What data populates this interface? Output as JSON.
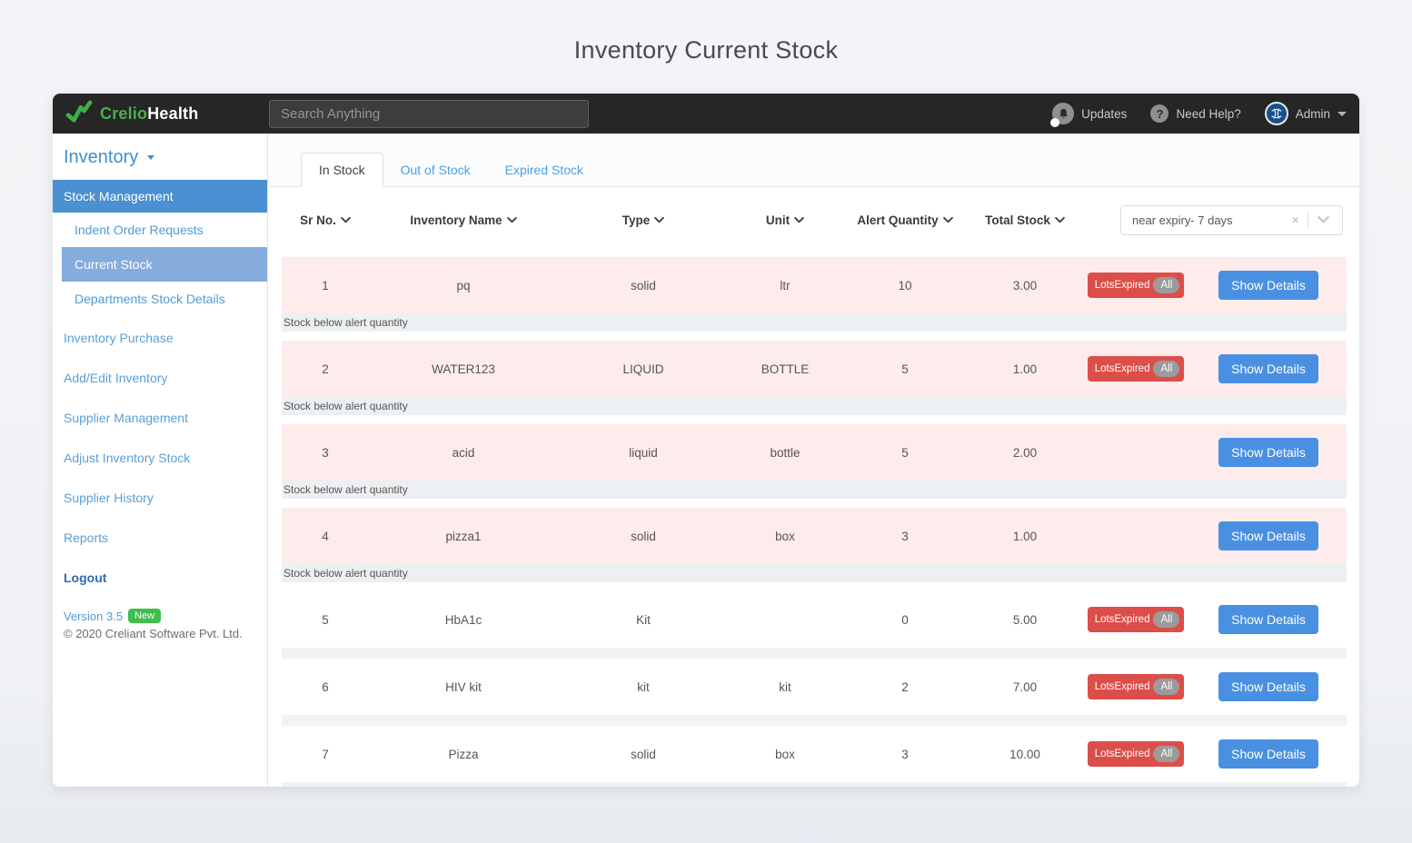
{
  "page": {
    "title": "Inventory Current Stock"
  },
  "navbar": {
    "brand_primary": "Crelio",
    "brand_secondary": "Health",
    "search_placeholder": "Search Anything",
    "updates_label": "Updates",
    "help_label": "Need Help?",
    "admin_label": "Admin"
  },
  "sidebar": {
    "title": "Inventory",
    "items": [
      {
        "label": "Stock Management",
        "style": "parent-active"
      },
      {
        "label": "Indent Order Requests",
        "style": "sub"
      },
      {
        "label": "Current Stock",
        "style": "sub-active"
      },
      {
        "label": "Departments Stock Details",
        "style": "sub"
      },
      {
        "label": "Inventory Purchase",
        "style": "normal"
      },
      {
        "label": "Add/Edit Inventory",
        "style": "normal"
      },
      {
        "label": "Supplier Management",
        "style": "normal"
      },
      {
        "label": "Adjust Inventory Stock",
        "style": "normal"
      },
      {
        "label": "Supplier History",
        "style": "normal"
      },
      {
        "label": "Reports",
        "style": "normal"
      },
      {
        "label": "Logout",
        "style": "logout"
      }
    ],
    "version_label": "Version 3.5",
    "version_badge": "New",
    "copyright": "© 2020 Creliant Software Pvt. Ltd."
  },
  "tabs": [
    {
      "label": "In Stock",
      "active": true
    },
    {
      "label": "Out of Stock",
      "active": false
    },
    {
      "label": "Expired Stock",
      "active": false
    }
  ],
  "filter": {
    "value": "near expiry- 7 days",
    "clear_icon": "×"
  },
  "table": {
    "columns": [
      "Sr No.",
      "Inventory Name",
      "Type",
      "Unit",
      "Alert Quantity",
      "Total Stock"
    ],
    "lots_expired_label": "LotsExpired",
    "lots_expired_all_label": "All",
    "show_details_label": "Show Details",
    "below_alert_note": "Stock below alert quantity",
    "rows": [
      {
        "sr": "1",
        "name": "pq",
        "type": "solid",
        "unit": "ltr",
        "alert_quantity": "10",
        "total_stock": "3.00",
        "lots_expired": true,
        "below_alert": true
      },
      {
        "sr": "2",
        "name": "WATER123",
        "type": "LIQUID",
        "unit": "BOTTLE",
        "alert_quantity": "5",
        "total_stock": "1.00",
        "lots_expired": true,
        "below_alert": true
      },
      {
        "sr": "3",
        "name": "acid",
        "type": "liquid",
        "unit": "bottle",
        "alert_quantity": "5",
        "total_stock": "2.00",
        "lots_expired": false,
        "below_alert": true
      },
      {
        "sr": "4",
        "name": "pizza1",
        "type": "solid",
        "unit": "box",
        "alert_quantity": "3",
        "total_stock": "1.00",
        "lots_expired": false,
        "below_alert": true
      },
      {
        "sr": "5",
        "name": "HbA1c",
        "type": "Kit",
        "unit": "",
        "alert_quantity": "0",
        "total_stock": "5.00",
        "lots_expired": true,
        "below_alert": false
      },
      {
        "sr": "6",
        "name": "HIV kit",
        "type": "kit",
        "unit": "kit",
        "alert_quantity": "2",
        "total_stock": "7.00",
        "lots_expired": true,
        "below_alert": false
      },
      {
        "sr": "7",
        "name": "Pizza",
        "type": "solid",
        "unit": "box",
        "alert_quantity": "3",
        "total_stock": "10.00",
        "lots_expired": true,
        "below_alert": false
      }
    ]
  },
  "colors": {
    "accent_blue": "#4a90e2",
    "danger_red": "#dc4e49",
    "brand_green": "#4caf50",
    "nav_active_blue": "#4a90d2",
    "nav_subactive_blue": "#85acdc",
    "row_alert_pink": "#fdeceb",
    "new_badge_green": "#3fbf4e"
  }
}
